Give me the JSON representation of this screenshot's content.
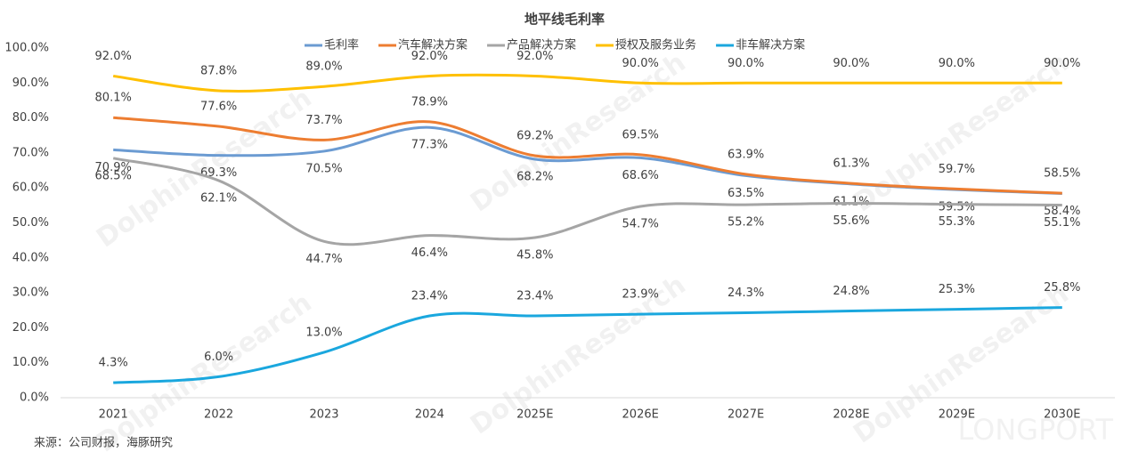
{
  "chart_data": {
    "type": "line",
    "title": "地平线毛利率",
    "categories": [
      "2021",
      "2022",
      "2023",
      "2024",
      "2025E",
      "2026E",
      "2027E",
      "2028E",
      "2029E",
      "2030E"
    ],
    "series": [
      {
        "name": "毛利率",
        "color": "#6b9bd2",
        "values": [
          70.9,
          69.3,
          70.5,
          77.3,
          68.2,
          68.6,
          63.5,
          61.1,
          59.5,
          58.4
        ],
        "value_labels": [
          "70.9%",
          "69.3%",
          "70.5%",
          "77.3%",
          "68.2%",
          "68.6%",
          "63.5%",
          "61.1%",
          "59.5%",
          "58.4%"
        ]
      },
      {
        "name": "汽车解决方案",
        "color": "#ed7d31",
        "values": [
          80.1,
          77.6,
          73.7,
          78.9,
          69.2,
          69.5,
          63.9,
          61.3,
          59.7,
          58.5
        ],
        "value_labels": [
          "80.1%",
          "77.6%",
          "73.7%",
          "78.9%",
          "69.2%",
          "69.5%",
          "63.9%",
          "61.3%",
          "59.7%",
          "58.5%"
        ]
      },
      {
        "name": "产品解决方案",
        "color": "#a5a5a5",
        "values": [
          68.5,
          62.1,
          44.7,
          46.4,
          45.8,
          54.7,
          55.2,
          55.6,
          55.3,
          55.1
        ],
        "value_labels": [
          "68.5%",
          "62.1%",
          "44.7%",
          "46.4%",
          "45.8%",
          "54.7%",
          "55.2%",
          "55.6%",
          "55.3%",
          "55.1%"
        ]
      },
      {
        "name": "授权及服务业务",
        "color": "#ffc000",
        "values": [
          92.0,
          87.8,
          89.0,
          92.0,
          92.0,
          90.0,
          90.0,
          90.0,
          90.0,
          90.0
        ],
        "value_labels": [
          "92.0%",
          "87.8%",
          "89.0%",
          "92.0%",
          "92.0%",
          "90.0%",
          "90.0%",
          "90.0%",
          "90.0%",
          "90.0%"
        ]
      },
      {
        "name": "非车解决方案",
        "color": "#1aa7de",
        "values": [
          4.3,
          6.0,
          13.0,
          23.4,
          23.4,
          23.9,
          24.3,
          24.8,
          25.3,
          25.8
        ],
        "value_labels": [
          "4.3%",
          "6.0%",
          "13.0%",
          "23.4%",
          "23.4%",
          "23.9%",
          "24.3%",
          "24.8%",
          "25.3%",
          "25.8%"
        ]
      }
    ],
    "ylim": [
      0,
      100
    ],
    "yticks": [
      {
        "value": 0,
        "label": "0.0%"
      },
      {
        "value": 10,
        "label": "10.0%"
      },
      {
        "value": 20,
        "label": "20.0%"
      },
      {
        "value": 30,
        "label": "30.0%"
      },
      {
        "value": 40,
        "label": "40.0%"
      },
      {
        "value": 50,
        "label": "50.0%"
      },
      {
        "value": 60,
        "label": "60.0%"
      },
      {
        "value": 70,
        "label": "70.0%"
      },
      {
        "value": 80,
        "label": "80.0%"
      },
      {
        "value": 90,
        "label": "90.0%"
      },
      {
        "value": 100,
        "label": "100.0%"
      }
    ],
    "legend": "top",
    "smooth": true,
    "source": "来源：公司财报，海豚研究",
    "watermarks": [
      "DolphinResearch",
      "LONGPORT"
    ]
  }
}
